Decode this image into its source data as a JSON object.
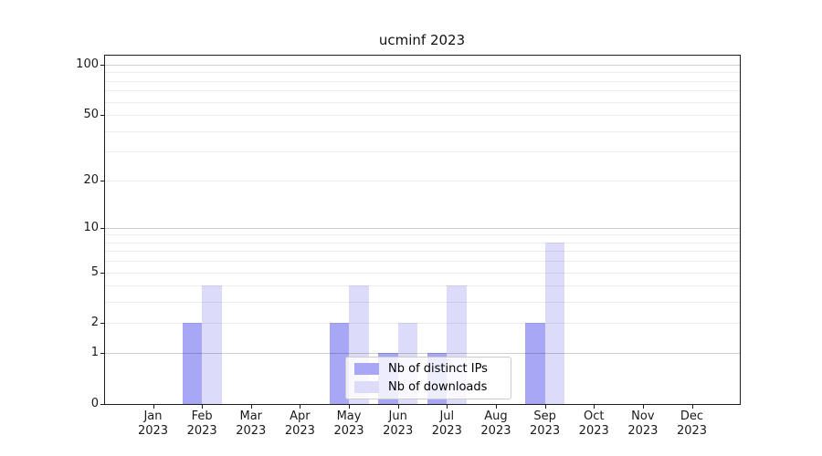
{
  "chart_data": {
    "type": "bar",
    "title": "ucminf 2023",
    "categories": [
      "Jan",
      "Feb",
      "Mar",
      "Apr",
      "May",
      "Jun",
      "Jul",
      "Aug",
      "Sep",
      "Oct",
      "Nov",
      "Dec"
    ],
    "x_tick_year": "2023",
    "series": [
      {
        "name": "Nb of distinct IPs",
        "color": "#a7a7f6",
        "values": [
          0,
          2,
          0,
          0,
          2,
          1,
          1,
          0,
          2,
          0,
          0,
          0
        ]
      },
      {
        "name": "Nb of downloads",
        "color": "#dcdcfa",
        "values": [
          0,
          4,
          0,
          0,
          4,
          2,
          4,
          0,
          8,
          0,
          0,
          0
        ]
      }
    ],
    "yscale": "log1p",
    "ylim": [
      0,
      115
    ],
    "yticks": [
      0,
      1,
      2,
      5,
      10,
      20,
      50,
      100
    ],
    "major_gridlines": [
      1,
      10,
      100
    ],
    "minor_gridlines": [
      2,
      3,
      4,
      5,
      6,
      7,
      8,
      9,
      20,
      30,
      40,
      50,
      60,
      70,
      80,
      90
    ],
    "grid": true,
    "legend": {
      "position": "lower center",
      "items": [
        "Nb of distinct IPs",
        "Nb of downloads"
      ]
    }
  },
  "colors": {
    "axis": "#1c1c1c",
    "text": "#1a1a1a",
    "legend_border": "#cccccc",
    "bar_distinct_ips": "#a7a7f6",
    "bar_downloads": "#dcdcfa"
  }
}
